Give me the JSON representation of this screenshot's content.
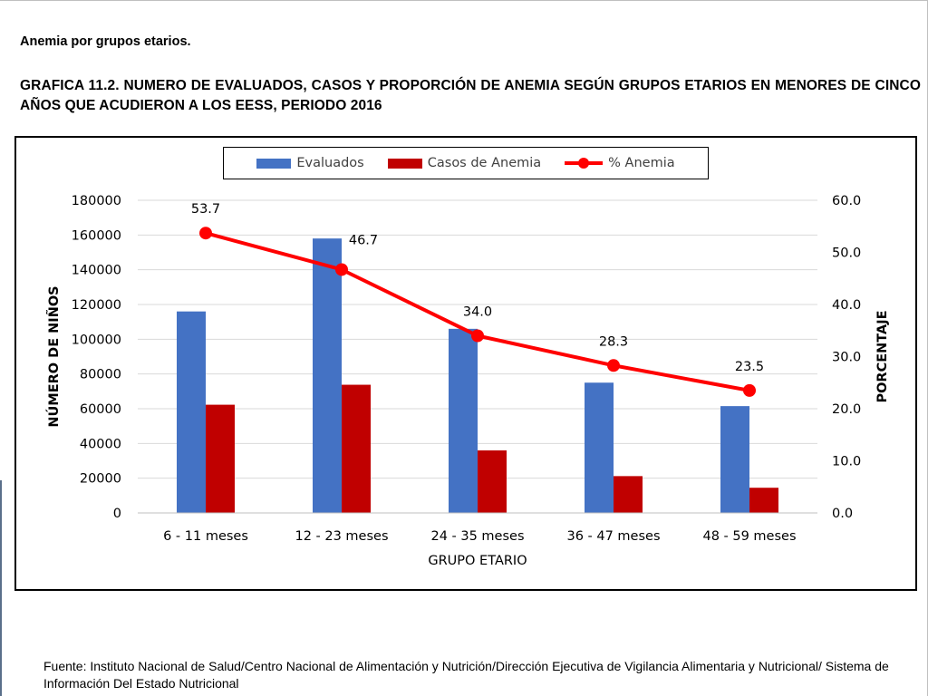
{
  "heading": "Anemia por grupos etarios.",
  "title": "GRAFICA 11.2. NUMERO DE EVALUADOS, CASOS Y PROPORCIÓN DE ANEMIA SEGÚN GRUPOS ETARIOS EN MENORES DE CINCO AÑOS QUE ACUDIERON A LOS EESS, PERIODO 2016",
  "source": "Fuente: Instituto Nacional de Salud/Centro Nacional de Alimentación y Nutrición/Dirección Ejecutiva de Vigilancia Alimentaria y Nutricional/ Sistema de Información Del Estado Nutricional",
  "chart_data": {
    "type": "bar",
    "categories": [
      "6 - 11 meses",
      "12 - 23 meses",
      "24 - 35 meses",
      "36 - 47 meses",
      "48 - 59 meses"
    ],
    "xlabel": "GRUPO ETARIO",
    "ylabel": "NÚMERO DE NIÑOS",
    "y2label": "PORCENTAJE",
    "ylim": [
      0,
      180000
    ],
    "y2lim": [
      0,
      60
    ],
    "yticks": [
      "0",
      "20000",
      "40000",
      "60000",
      "80000",
      "100000",
      "120000",
      "140000",
      "160000",
      "180000"
    ],
    "y2ticks": [
      "0.0",
      "10.0",
      "20.0",
      "30.0",
      "40.0",
      "50.0",
      "60.0"
    ],
    "grid": true,
    "legend_position": "top",
    "series": [
      {
        "name": "Evaluados",
        "type": "bar",
        "axis": "left",
        "color": "#4472c4",
        "values": [
          116000,
          158000,
          106000,
          75000,
          61500
        ]
      },
      {
        "name": "Casos de Anemia",
        "type": "bar",
        "axis": "left",
        "color": "#c00000",
        "values": [
          62300,
          73800,
          36000,
          21200,
          14500
        ]
      },
      {
        "name": "% Anemia",
        "type": "line",
        "axis": "right",
        "color": "#ff0000",
        "values": [
          53.7,
          46.7,
          34.0,
          28.3,
          23.5
        ],
        "labels": [
          "53.7",
          "46.7",
          "34.0",
          "28.3",
          "23.5"
        ]
      }
    ]
  }
}
